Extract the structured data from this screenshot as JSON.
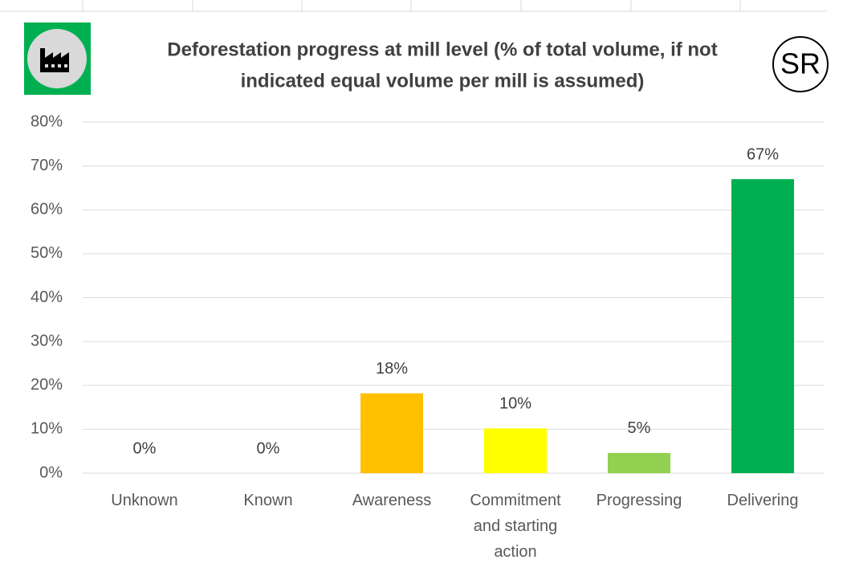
{
  "chart_data": {
    "type": "bar",
    "title_lines": [
      "Deforestation progress at mill level (% of total volume, if not",
      "indicated equal volume per mill is assumed)"
    ],
    "logo_text": "SR",
    "categories": [
      "Unknown",
      "Known",
      "Awareness",
      "Commitment and starting action",
      "Progressing",
      "Delivering"
    ],
    "values": [
      0,
      0,
      18.2,
      10.2,
      4.6,
      67
    ],
    "value_labels": [
      "0%",
      "0%",
      "18%",
      "10%",
      "5%",
      "67%"
    ],
    "colors": [
      "#7f7f7f",
      "#7f7f7f",
      "#ffc000",
      "#ffff00",
      "#92d050",
      "#00b050"
    ],
    "ylim": [
      0,
      80
    ],
    "yticks": [
      {
        "value": 0,
        "label": "0%"
      },
      {
        "value": 10,
        "label": "10%"
      },
      {
        "value": 20,
        "label": "20%"
      },
      {
        "value": 30,
        "label": "30%"
      },
      {
        "value": 40,
        "label": "40%"
      },
      {
        "value": 50,
        "label": "50%"
      },
      {
        "value": 60,
        "label": "60%"
      },
      {
        "value": 70,
        "label": "70%"
      },
      {
        "value": 80,
        "label": "80%"
      }
    ],
    "grid": true
  }
}
